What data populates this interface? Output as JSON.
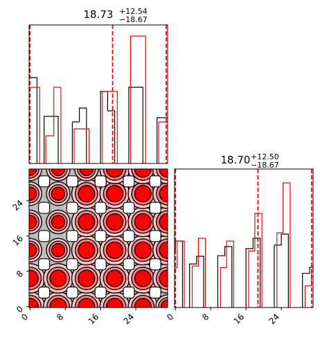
{
  "chart_data": {
    "type": "corner",
    "titles": [
      {
        "value": "18.73",
        "upper": "+12.54",
        "lower": "−18.67"
      },
      {
        "value": "18.70",
        "upper": "+12.50",
        "lower": "−18.67"
      }
    ],
    "ticks": [
      "0",
      "8",
      "16",
      "24"
    ],
    "tick_values": [
      0,
      8,
      16,
      24
    ],
    "axis_range": [
      -0.2,
      31.2
    ],
    "colors": {
      "series_a": "#000000",
      "series_b": "#ff0000",
      "fill_light": "#ffc4c4",
      "fill_mid": "#ff8080",
      "fill_dark": "#ff0000",
      "background": "#bdbdbd"
    },
    "marginal_x": {
      "bin_width": 3.2,
      "bins": [
        0,
        4.8,
        11.2,
        17.6,
        24.0,
        30.4
      ],
      "series_black": [
        0.62,
        0.34,
        0.4,
        0.38,
        0.55,
        0.33
      ],
      "series_black_left": [
        0.62,
        0.34,
        0.3,
        0.52,
        0.55,
        0.33
      ],
      "series_red": [
        0.55,
        0.55,
        0.25,
        0.52,
        0.92,
        0.3
      ],
      "series_red_left": [
        0.55,
        0.2,
        0.25,
        0.52,
        0.92,
        0.3
      ],
      "lines": [
        0,
        18.73,
        31.27
      ]
    },
    "marginal_y": {
      "bin_width": 3.2,
      "bins": [
        0,
        4.8,
        11.2,
        17.6,
        24.0,
        30.4
      ],
      "series_black": [
        0.48,
        0.37,
        0.44,
        0.5,
        0.53,
        0.29
      ],
      "series_red": [
        0.48,
        0.5,
        0.48,
        0.68,
        0.9,
        0.26
      ],
      "lines": [
        0,
        18.7,
        31.2
      ]
    },
    "contour_grid": {
      "spacing": 6.4,
      "offsets": [
        0,
        6.4,
        12.8,
        19.2,
        25.6,
        31.2
      ]
    }
  }
}
